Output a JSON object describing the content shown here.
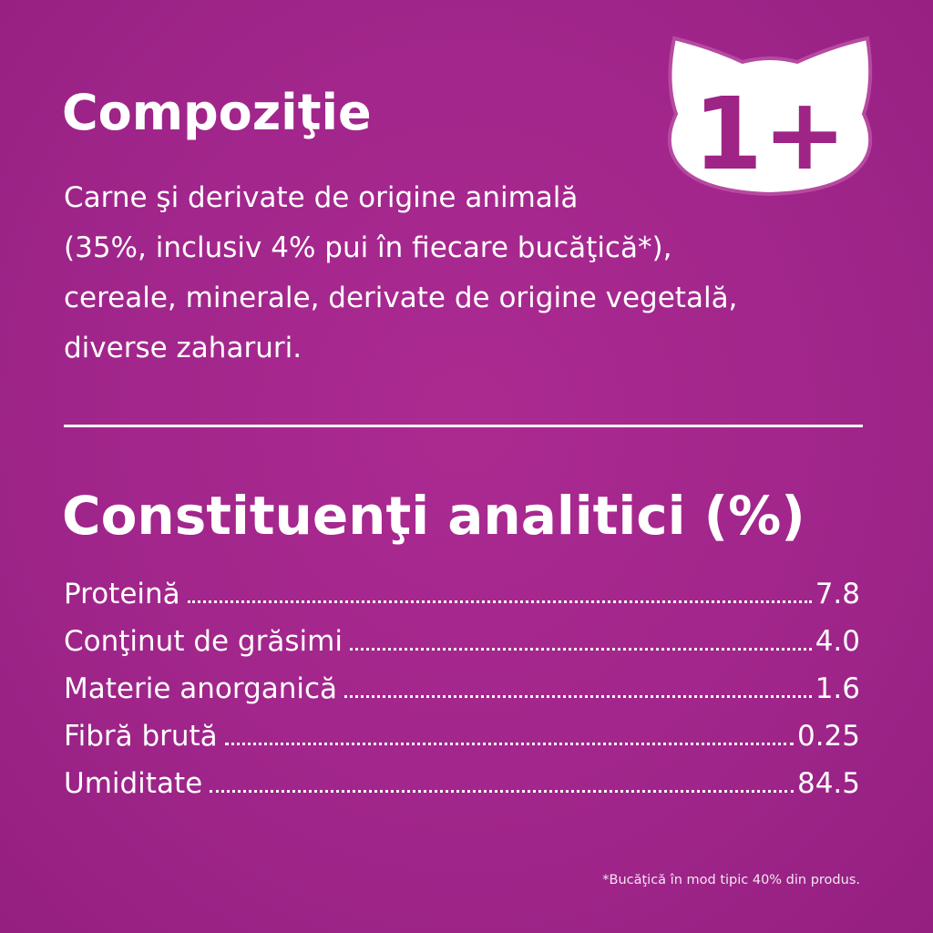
{
  "composition": {
    "title": "Compoziţie",
    "lines": [
      "Carne şi derivate de origine animală",
      "(35%, inclusiv 4% pui în fiecare bucăţică*),",
      "cereale, minerale, derivate de origine vegetală,",
      "diverse zaharuri."
    ]
  },
  "badge": {
    "icon": "cat-head-icon",
    "text": "1+"
  },
  "analytics": {
    "title": "Constituenţi analitici (%)",
    "rows": [
      {
        "label": "Proteină",
        "value": "7.8"
      },
      {
        "label": "Conţinut de grăsimi",
        "value": "4.0"
      },
      {
        "label": "Materie anorganică",
        "value": "1.6"
      },
      {
        "label": "Fibră brută",
        "value": "0.25"
      },
      {
        "label": "Umiditate",
        "value": "84.5"
      }
    ]
  },
  "footnote": "*Bucăţică în mod tipic 40% din produs.",
  "colors": {
    "background": "#a0258a",
    "text": "#ffffff"
  }
}
